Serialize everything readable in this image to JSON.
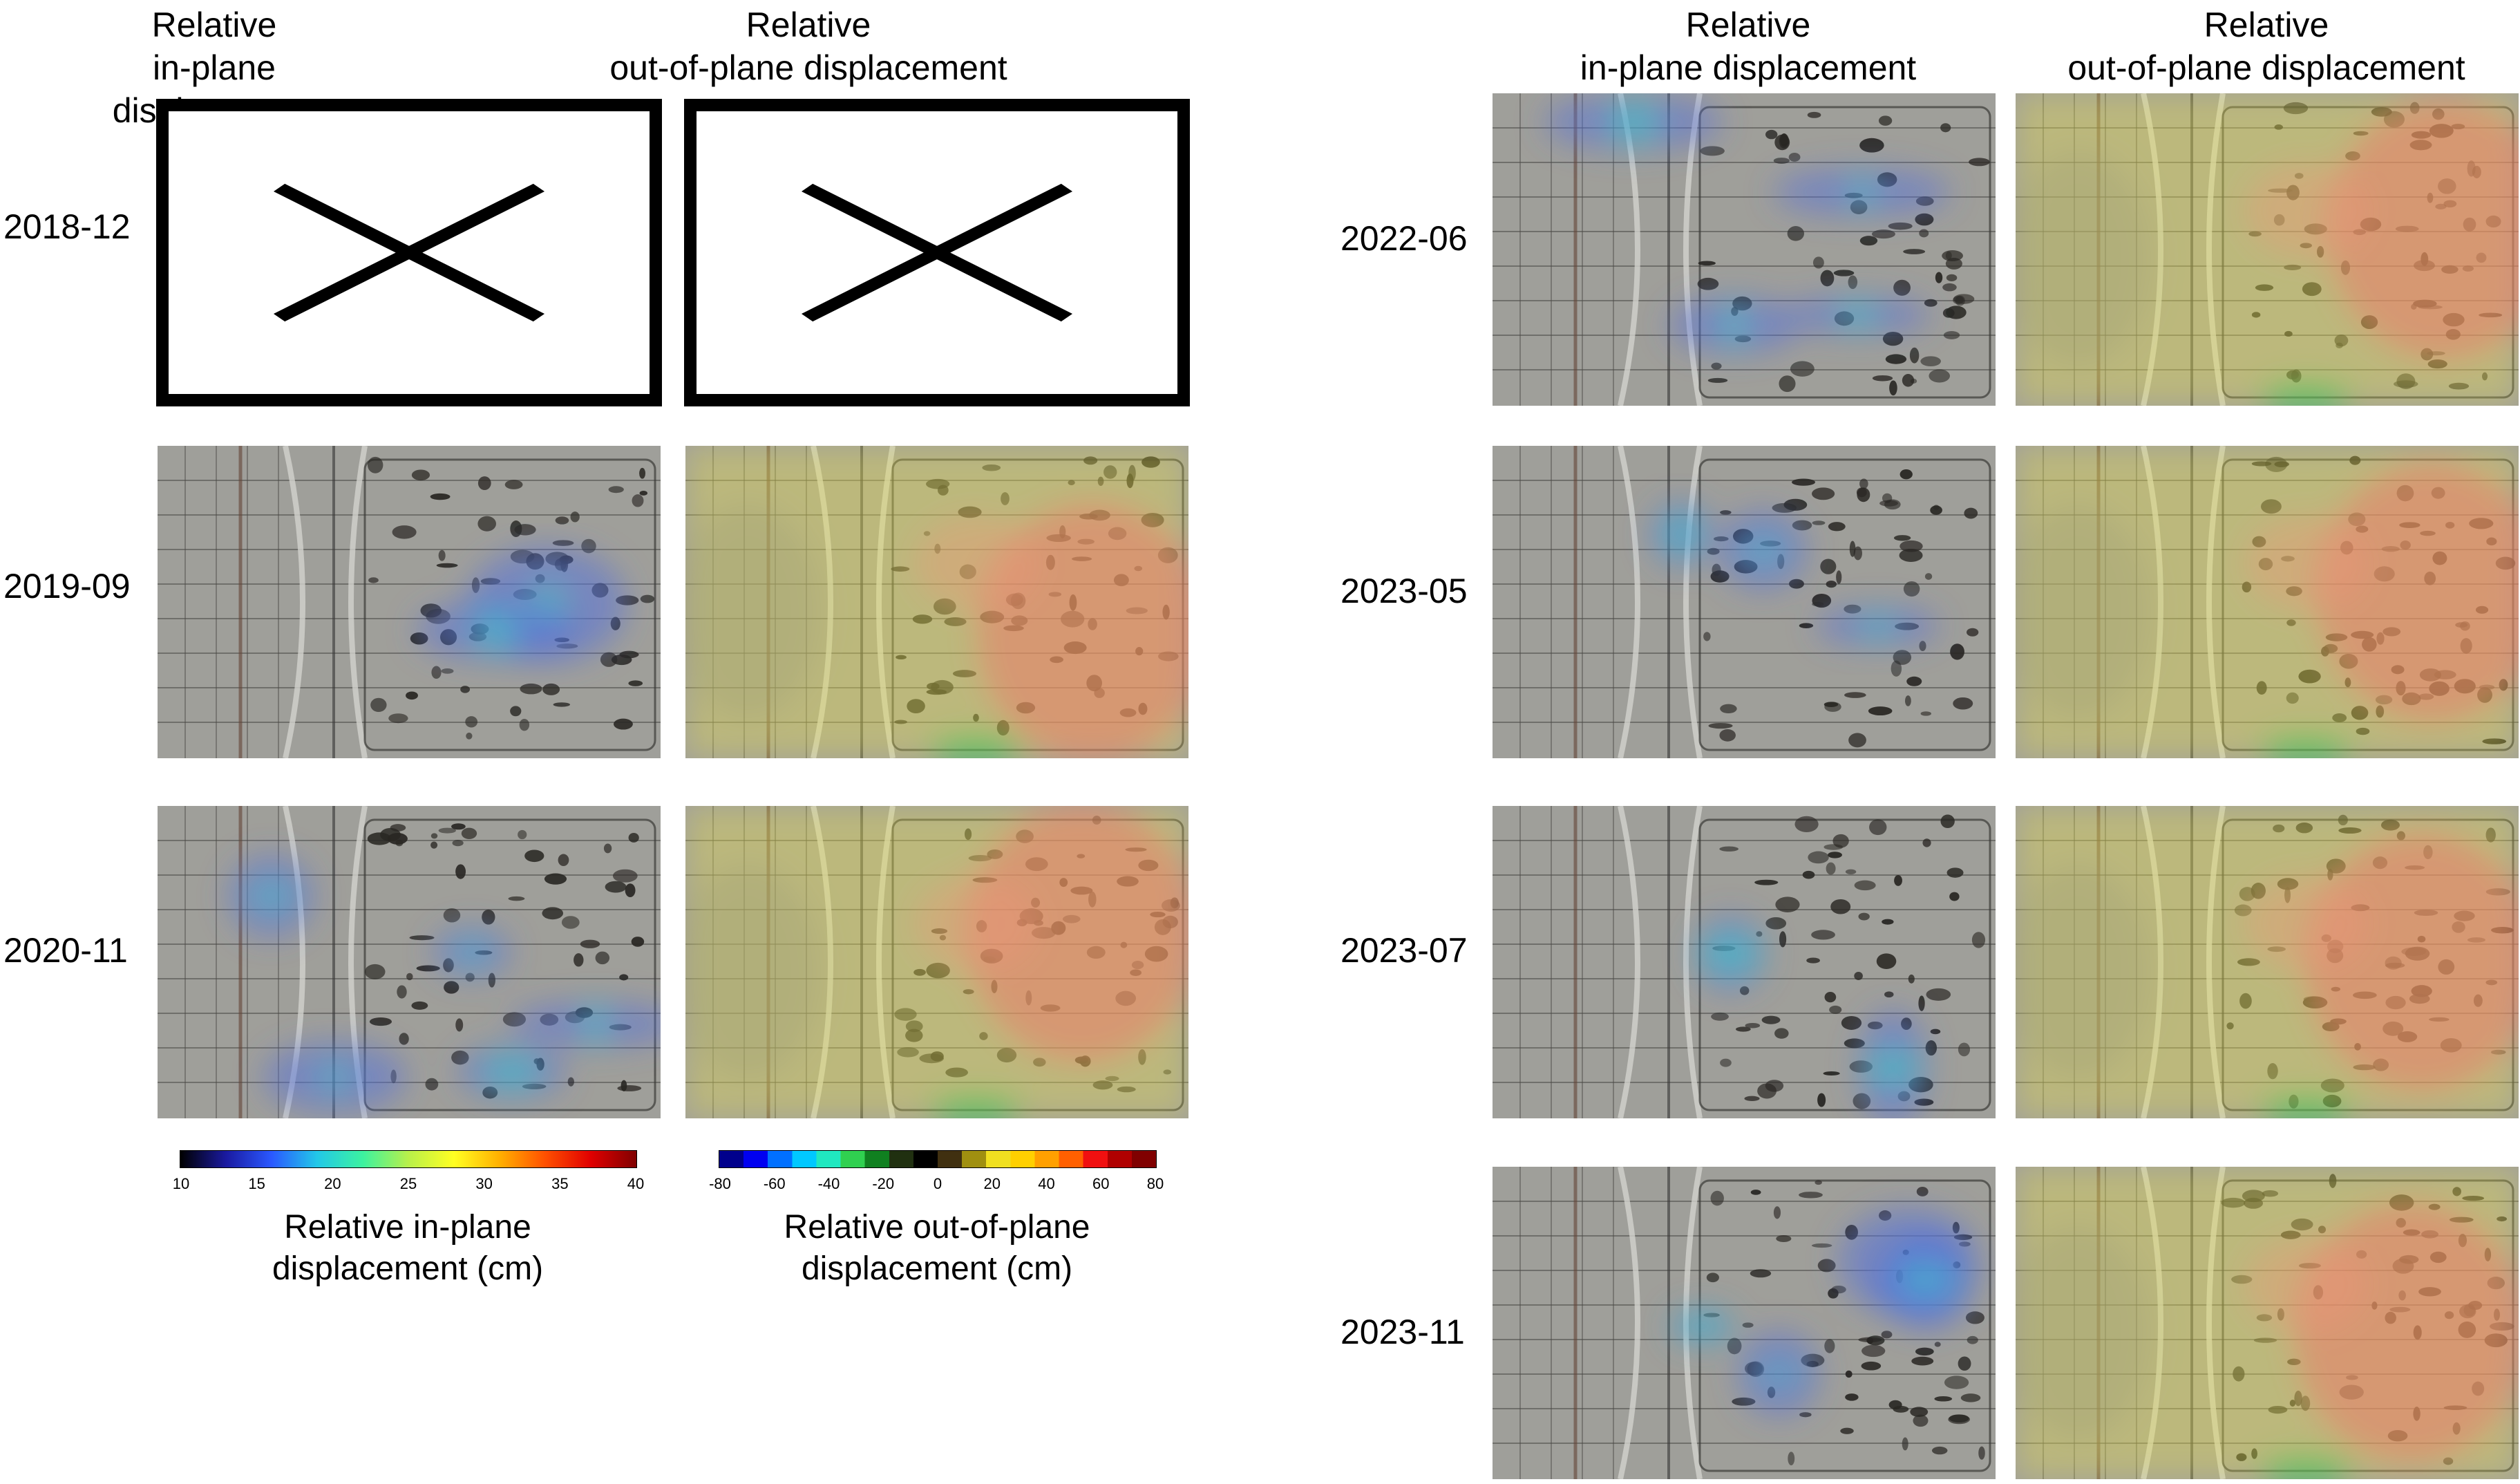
{
  "figure": {
    "column_headers": [
      {
        "line1": "Relative",
        "line2": "in-plane displacement"
      },
      {
        "line1": "Relative",
        "line2": "out-of-plane displacement"
      },
      {
        "line1": "Relative",
        "line2": "in-plane displacement"
      },
      {
        "line1": "Relative",
        "line2": "out-of-plane displacement"
      }
    ],
    "left_rows": [
      "2018-12",
      "2019-09",
      "2020-11"
    ],
    "right_rows": [
      "2022-06",
      "2023-05",
      "2023-07",
      "2023-11"
    ],
    "no_data_rows": [
      "2018-12"
    ]
  },
  "colorbars": {
    "in_plane": {
      "ticks": [
        "10",
        "15",
        "20",
        "25",
        "30",
        "35",
        "40"
      ],
      "title_line1": "Relative in-plane",
      "title_line2": "displacement (cm)",
      "colors": [
        "#000000",
        "#1a1aa0",
        "#2a58ff",
        "#22c8e8",
        "#3cf2a0",
        "#b8f04a",
        "#ffff22",
        "#ffb000",
        "#ff5000",
        "#e00000",
        "#800000"
      ]
    },
    "out_of_plane": {
      "ticks": [
        "-80",
        "-60",
        "-40",
        "-20",
        "0",
        "20",
        "40",
        "60",
        "80"
      ],
      "title_line1": "Relative out-of-plane",
      "title_line2": "displacement (cm)",
      "colors": [
        "#00008c",
        "#0000f0",
        "#0070ff",
        "#00c8ff",
        "#20e8c0",
        "#30d050",
        "#108020",
        "#203010",
        "#000000",
        "#403010",
        "#a09010",
        "#f0e020",
        "#ffd000",
        "#ffa000",
        "#ff6000",
        "#f01010",
        "#b00000",
        "#800000"
      ]
    }
  },
  "colors": {
    "panel_base": "#8a8a86",
    "frame": "#000000"
  }
}
